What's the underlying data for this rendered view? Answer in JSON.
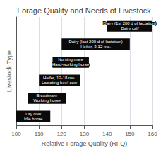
{
  "chart_data": {
    "type": "bar",
    "orientation": "horizontal",
    "title": "Forage Quality and Needs of Livestock",
    "xlabel": "Relative Forage Quality (RFQ)",
    "ylabel": "Livestock Type",
    "categories": [
      "Dry cow\nIdle horse",
      "Broodmare\nWorking horse",
      "Heifer, 12-18 mo.\nLactating beef cow",
      "Nursing mare\nHard-working horse",
      "Dairy (last 200 d of lactation)\nHeifer, 3-12 mo.",
      "Dairy (1st 200 d of lactation)\nDairy calf"
    ],
    "values": [
      [
        100,
        115
      ],
      [
        105,
        122
      ],
      [
        110,
        128
      ],
      [
        116,
        132
      ],
      [
        120,
        150
      ],
      [
        140,
        160
      ]
    ],
    "color": "#0a0a0a",
    "xlim": [
      100,
      160
    ],
    "xticks": [
      100,
      110,
      120,
      130,
      140,
      150,
      160
    ],
    "grid": true,
    "tick_labels": "x"
  }
}
